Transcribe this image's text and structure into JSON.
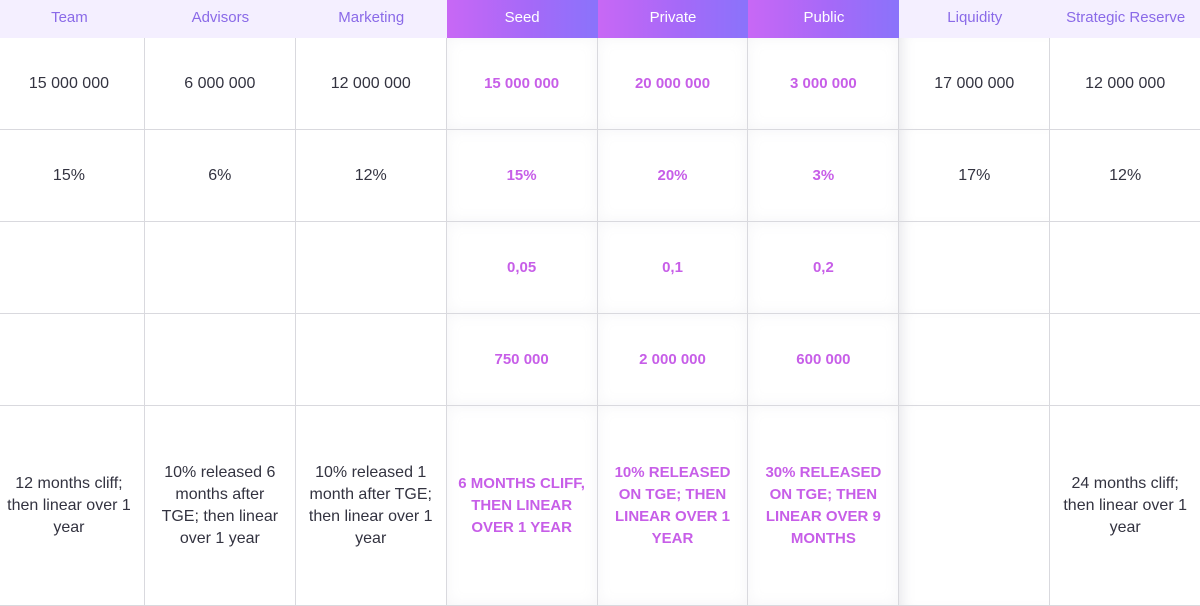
{
  "columns": [
    {
      "name": "Team",
      "highlight": false,
      "tokens": "15 000 000",
      "percent": "15%",
      "price": "",
      "raise": "",
      "vesting": "12 months cliff; then linear over 1 year"
    },
    {
      "name": "Advisors",
      "highlight": false,
      "tokens": "6 000 000",
      "percent": "6%",
      "price": "",
      "raise": "",
      "vesting": "10% released 6 months after TGE; then linear over 1 year"
    },
    {
      "name": "Marketing",
      "highlight": false,
      "tokens": "12 000 000",
      "percent": "12%",
      "price": "",
      "raise": "",
      "vesting": "10% released 1 month after TGE; then linear over 1 year"
    },
    {
      "name": "Seed",
      "highlight": true,
      "tokens": "15 000 000",
      "percent": "15%",
      "price": "0,05",
      "raise": "750 000",
      "vesting": "6 months cliff, then linear over 1 year"
    },
    {
      "name": "Private",
      "highlight": true,
      "tokens": "20 000 000",
      "percent": "20%",
      "price": "0,1",
      "raise": "2 000 000",
      "vesting": "10% released on TGE; then linear over 1 year"
    },
    {
      "name": "Public",
      "highlight": true,
      "tokens": "3 000 000",
      "percent": "3%",
      "price": "0,2",
      "raise": "600 000",
      "vesting": "30% released on TGE; then linear over 9 months"
    },
    {
      "name": "Liquidity",
      "highlight": false,
      "tokens": "17 000 000",
      "percent": "17%",
      "price": "",
      "raise": "",
      "vesting": ""
    },
    {
      "name": "Strategic Reserve",
      "highlight": false,
      "tokens": "12 000 000",
      "percent": "12%",
      "price": "",
      "raise": "",
      "vesting": "24 months cliff; then linear over 1 year"
    }
  ],
  "colors": {
    "header_text": "#8a6ae8",
    "header_bg": "#f4efff",
    "highlight_gradient_start": "#c868f5",
    "highlight_gradient_end": "#8a73fb",
    "highlight_text": "#c75ee8",
    "body_text": "#333340"
  }
}
